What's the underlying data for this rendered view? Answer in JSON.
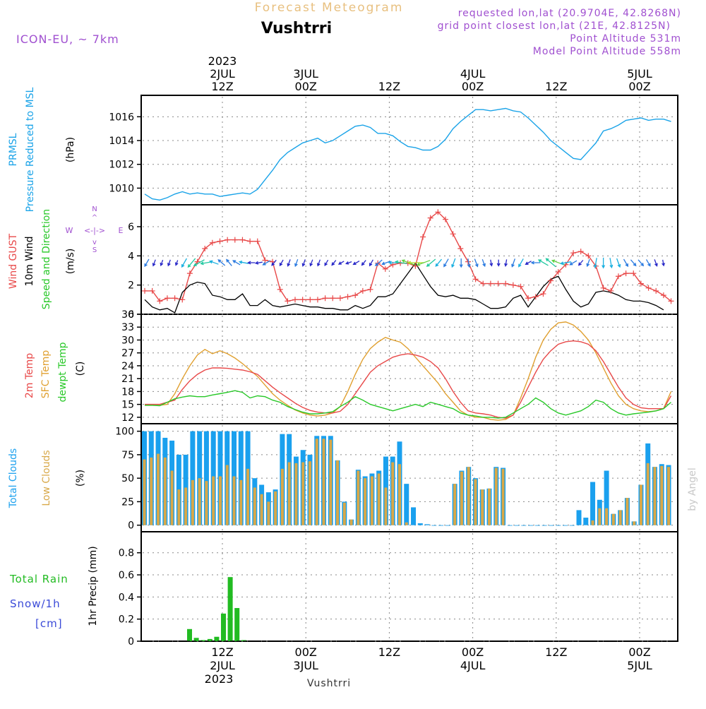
{
  "header": {
    "product_title": "Forecast Meteogram",
    "location": "Vushtrri",
    "model": "ICON-EU, ~ 7km",
    "requested": "requested lon,lat (20.9704E, 42.8268N)",
    "grid_point": "grid point closest lon,lat (21E, 42.8125N)",
    "point_altitude": "Point Altitude 531m",
    "model_altitude": "Model Point Altitude 558m",
    "watermark": "by Angel",
    "footer_location": "Vushtrri"
  },
  "time_axis": {
    "hours_total": 70,
    "year_label": "2023",
    "ticks": [
      {
        "hour": 12,
        "top_day": "2JUL",
        "top_hour": "12Z",
        "bottom_hour": "12Z",
        "bottom_day": "2JUL"
      },
      {
        "hour": 24,
        "top_day": "3JUL",
        "top_hour": "00Z",
        "bottom_hour": "00Z",
        "bottom_day": "3JUL"
      },
      {
        "hour": 36,
        "top_day": "",
        "top_hour": "12Z",
        "bottom_hour": "12Z",
        "bottom_day": ""
      },
      {
        "hour": 48,
        "top_day": "4JUL",
        "top_hour": "00Z",
        "bottom_hour": "00Z",
        "bottom_day": "4JUL"
      },
      {
        "hour": 60,
        "top_day": "",
        "top_hour": "12Z",
        "bottom_hour": "12Z",
        "bottom_day": ""
      },
      {
        "hour": 72,
        "top_day": "5JUL",
        "top_hour": "00Z",
        "bottom_hour": "00Z",
        "bottom_day": "5JUL"
      }
    ],
    "top_year": "2023",
    "bottom_year": "2023"
  },
  "panel_labels": {
    "pressure": {
      "label1": "PRMSL",
      "label2": "Pressure Reduced to MSL",
      "unit": "(hPa)"
    },
    "wind": {
      "gust": "Wind GUST",
      "wind10m": "10m Wind",
      "speed_dir": "Speed and Direction",
      "unit": "(m/s)",
      "compass_n": "N",
      "compass_s": "S",
      "compass_w": "W",
      "compass_e": "E",
      "compass_arrows": "<-|->",
      "compass_up": "^",
      "compass_down": "v"
    },
    "temp": {
      "t2m": "2m Temp",
      "sfc": "SFC Temp",
      "dewpt": "dewpt Temp",
      "unit": "(C)"
    },
    "clouds": {
      "total": "Total Clouds",
      "low": "Low Clouds",
      "unit": "(%)"
    },
    "precip": {
      "total_rain": "Total  Rain",
      "snow": "Snow/1h",
      "cm": "[cm]",
      "unit": "1hr Precip (mm)"
    }
  },
  "colors": {
    "pressure": "#1aa3e8",
    "gust": "#e84848",
    "wind": "#000000",
    "t2m": "#e84848",
    "sfc": "#e0a030",
    "dewpt": "#28c828",
    "total_clouds": "#1aa0ee",
    "low_clouds": "#d8a848",
    "rain": "#22bb22",
    "snow": "#3a4ad8",
    "header_purple": "#a050d0",
    "title_orange": "#e8c080"
  },
  "chart_data": [
    {
      "type": "line",
      "title": "PRMSL Pressure Reduced to MSL",
      "ylabel": "(hPa)",
      "ylim": [
        1008.6,
        1017.8
      ],
      "yticks": [
        1010,
        1012,
        1014,
        1016
      ],
      "series": [
        {
          "name": "PRMSL",
          "values": [
            1009.5,
            1009.1,
            1009.0,
            1009.2,
            1009.5,
            1009.7,
            1009.5,
            1009.6,
            1009.5,
            1009.5,
            1009.3,
            1009.4,
            1009.5,
            1009.6,
            1009.5,
            1009.9,
            1010.7,
            1011.5,
            1012.4,
            1013.0,
            1013.4,
            1013.8,
            1014.0,
            1014.2,
            1013.8,
            1014.0,
            1014.4,
            1014.8,
            1015.2,
            1015.3,
            1015.1,
            1014.6,
            1014.6,
            1014.4,
            1013.9,
            1013.5,
            1013.4,
            1013.2,
            1013.2,
            1013.5,
            1014.1,
            1015.0,
            1015.6,
            1016.1,
            1016.6,
            1016.6,
            1016.5,
            1016.6,
            1016.7,
            1016.5,
            1016.4,
            1015.9,
            1015.3,
            1014.7,
            1014.0,
            1013.5,
            1013.0,
            1012.5,
            1012.4,
            1013.1,
            1013.8,
            1014.8,
            1015.0,
            1015.3,
            1015.7,
            1015.8,
            1015.9,
            1015.7,
            1015.8,
            1015.8,
            1015.6
          ]
        }
      ]
    },
    {
      "type": "line",
      "title": "Wind GUST / 10m Wind Speed and Direction",
      "ylabel": "(m/s)",
      "ylim": [
        0,
        7.5
      ],
      "yticks": [
        0,
        2,
        4,
        6
      ],
      "series": [
        {
          "name": "Wind GUST",
          "values": [
            1.6,
            1.6,
            0.9,
            1.1,
            1.1,
            1.0,
            2.8,
            3.6,
            4.5,
            4.9,
            5.0,
            5.1,
            5.1,
            5.1,
            5.0,
            5.0,
            3.7,
            3.6,
            1.7,
            0.9,
            1.0,
            1.0,
            1.0,
            1.0,
            1.1,
            1.1,
            1.1,
            1.2,
            1.3,
            1.6,
            1.7,
            3.5,
            3.1,
            3.4,
            3.5,
            3.5,
            3.3,
            5.3,
            6.6,
            7.0,
            6.5,
            5.5,
            4.5,
            3.6,
            2.4,
            2.1,
            2.1,
            2.1,
            2.1,
            2.0,
            1.9,
            1.1,
            1.2,
            1.4,
            2.3,
            2.9,
            3.4,
            4.2,
            4.3,
            4.0,
            3.3,
            1.8,
            1.6,
            2.6,
            2.8,
            2.8,
            2.1,
            1.8,
            1.6,
            1.3,
            0.9
          ]
        },
        {
          "name": "10m Wind",
          "values": [
            1.0,
            0.5,
            0.3,
            0.4,
            0.1,
            1.5,
            2.0,
            2.2,
            2.1,
            1.3,
            1.2,
            1.0,
            1.0,
            1.4,
            0.6,
            0.6,
            1.0,
            0.6,
            0.5,
            0.6,
            0.7,
            0.6,
            0.5,
            0.5,
            0.4,
            0.4,
            0.3,
            0.3,
            0.6,
            0.4,
            0.6,
            1.2,
            1.2,
            1.4,
            2.1,
            2.8,
            3.5,
            2.7,
            1.9,
            1.3,
            1.2,
            1.3,
            1.1,
            1.1,
            1.0,
            0.7,
            0.4,
            0.4,
            0.5,
            1.1,
            1.3,
            0.5,
            1.2,
            1.9,
            2.4,
            2.6,
            1.7,
            0.9,
            0.5,
            0.7,
            1.5,
            1.6,
            1.5,
            1.3,
            1.0,
            0.9,
            0.9,
            0.8,
            0.6,
            0.3
          ]
        },
        {
          "name": "Wind direction (deg from)",
          "values": [
            30,
            20,
            20,
            20,
            20,
            30,
            40,
            60,
            80,
            110,
            130,
            140,
            120,
            100,
            90,
            80,
            60,
            40,
            30,
            20,
            20,
            20,
            20,
            20,
            30,
            40,
            60,
            70,
            60,
            40,
            30,
            50,
            70,
            90,
            100,
            110,
            90,
            70,
            50,
            40,
            30,
            20,
            0,
            350,
            340,
            340,
            350,
            0,
            10,
            20,
            30,
            60,
            90,
            120,
            130,
            110,
            80,
            60,
            40,
            20,
            10,
            0,
            350,
            340,
            330,
            320,
            320,
            330,
            340,
            350
          ]
        }
      ]
    },
    {
      "type": "line",
      "title": "2m Temp / SFC Temp / dewpt Temp",
      "ylabel": "(C)",
      "ylim": [
        10.5,
        36
      ],
      "yticks": [
        12,
        15,
        18,
        21,
        24,
        27,
        30,
        33,
        36
      ],
      "series": [
        {
          "name": "2m Temp",
          "values": [
            15.0,
            15.0,
            15.0,
            15.5,
            16.0,
            18.5,
            20.5,
            22.0,
            23.0,
            23.5,
            23.5,
            23.4,
            23.2,
            23.0,
            22.6,
            22.0,
            20.5,
            19.0,
            17.7,
            16.5,
            15.3,
            14.3,
            13.6,
            13.2,
            13.0,
            13.0,
            13.4,
            15.0,
            17.5,
            20.0,
            22.5,
            24.0,
            25.0,
            26.0,
            26.5,
            26.8,
            26.5,
            26.0,
            25.0,
            23.5,
            21.0,
            18.0,
            15.5,
            13.5,
            13.0,
            12.8,
            12.5,
            12.0,
            11.8,
            12.5,
            15.5,
            19.0,
            22.5,
            25.5,
            27.5,
            29.0,
            29.6,
            29.8,
            29.6,
            29.0,
            27.5,
            25.0,
            22.0,
            19.0,
            16.5,
            15.0,
            14.2,
            14.0,
            14.0,
            14.0,
            17.0
          ]
        },
        {
          "name": "SFC Temp",
          "values": [
            14.8,
            14.8,
            14.8,
            15.0,
            17.5,
            21.0,
            24.0,
            26.5,
            27.8,
            26.8,
            27.5,
            26.8,
            25.8,
            24.5,
            23.0,
            21.5,
            19.5,
            17.5,
            16.0,
            14.8,
            13.7,
            13.0,
            12.5,
            12.3,
            12.5,
            13.0,
            14.5,
            18.0,
            22.0,
            25.5,
            28.0,
            29.5,
            30.6,
            30.0,
            29.5,
            28.0,
            26.0,
            24.0,
            22.0,
            20.0,
            17.5,
            15.5,
            13.5,
            12.5,
            12.0,
            12.0,
            11.5,
            11.3,
            11.5,
            12.5,
            16.5,
            21.0,
            26.0,
            30.0,
            32.5,
            34.0,
            34.2,
            33.5,
            32.0,
            30.0,
            27.0,
            23.5,
            20.0,
            17.0,
            15.0,
            14.0,
            13.5,
            13.3,
            13.5,
            14.0,
            18.0
          ]
        },
        {
          "name": "dewpt Temp",
          "values": [
            14.8,
            14.8,
            14.7,
            15.5,
            16.3,
            16.7,
            17.0,
            16.8,
            16.8,
            17.2,
            17.5,
            17.8,
            18.2,
            17.8,
            16.5,
            17.0,
            16.8,
            16.0,
            15.5,
            14.5,
            13.8,
            13.2,
            12.8,
            12.8,
            13.0,
            13.3,
            14.5,
            15.5,
            16.8,
            16.0,
            15.0,
            14.5,
            14.0,
            13.5,
            14.0,
            14.5,
            15.0,
            14.5,
            15.5,
            15.0,
            14.5,
            14.0,
            13.0,
            12.5,
            12.3,
            12.0,
            12.0,
            11.8,
            12.0,
            13.0,
            14.0,
            15.0,
            16.5,
            15.5,
            14.0,
            13.0,
            12.5,
            13.0,
            13.5,
            14.5,
            16.0,
            15.5,
            14.0,
            13.0,
            12.5,
            12.8,
            13.0,
            13.2,
            13.5,
            14.0,
            15.5
          ]
        }
      ]
    },
    {
      "type": "bar",
      "title": "Total Clouds / Low Clouds",
      "ylabel": "(%)",
      "ylim": [
        -7,
        108
      ],
      "yticks": [
        0,
        25,
        50,
        75,
        100
      ],
      "series": [
        {
          "name": "Total Clouds",
          "values": [
            100,
            100,
            100,
            93,
            90,
            75,
            75,
            100,
            100,
            100,
            100,
            100,
            100,
            100,
            100,
            100,
            50,
            43,
            35,
            38,
            97,
            97,
            73,
            80,
            75,
            95,
            95,
            95,
            69,
            25,
            6,
            59,
            52,
            55,
            58,
            73,
            73,
            89,
            44,
            19,
            2,
            1,
            0,
            0,
            0,
            44,
            58,
            62,
            50,
            38,
            39,
            62,
            61,
            0,
            0,
            0,
            0,
            0,
            0,
            0,
            0,
            0,
            0,
            16,
            8,
            46,
            27,
            58,
            12,
            16,
            29,
            4,
            43,
            87,
            62,
            65,
            64,
            23
          ]
        },
        {
          "name": "Low Clouds",
          "values": [
            70,
            72,
            76,
            72,
            58,
            38,
            40,
            48,
            50,
            47,
            52,
            52,
            64,
            52,
            48,
            60,
            40,
            33,
            25,
            36,
            60,
            67,
            66,
            67,
            68,
            92,
            92,
            91,
            69,
            24,
            6,
            58,
            50,
            52,
            55,
            40,
            67,
            65,
            3,
            0,
            0,
            0,
            0,
            0,
            0,
            44,
            57,
            62,
            49,
            38,
            39,
            61,
            60,
            0,
            0,
            0,
            0,
            0,
            0,
            0,
            0,
            0,
            0,
            0,
            0,
            5,
            18,
            18,
            12,
            16,
            29,
            4,
            43,
            66,
            62,
            63,
            62,
            10
          ]
        }
      ]
    },
    {
      "type": "bar",
      "title": "1hr Precip",
      "ylabel": "1hr Precip (mm)",
      "ylim": [
        0,
        0.99
      ],
      "yticks": [
        0,
        0.2,
        0.4,
        0.6,
        0.8
      ],
      "series": [
        {
          "name": "Total Rain",
          "hours": [
            6,
            7,
            8,
            9,
            10,
            11,
            12,
            13,
            14
          ],
          "values": [
            0.11,
            0.03,
            0.01,
            0.02,
            0.04,
            0.25,
            0.58,
            0.3,
            0.01
          ]
        }
      ]
    }
  ]
}
